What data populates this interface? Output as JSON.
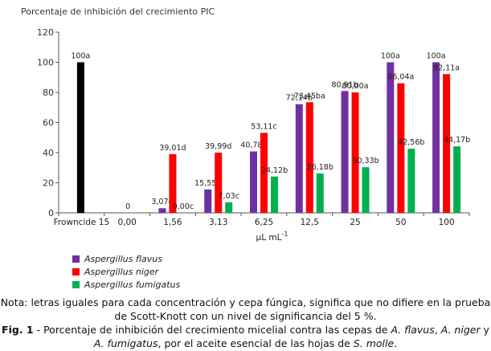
{
  "chart_data": {
    "type": "bar",
    "ylabel": "Porcentaje de inhibición del crecimiento PIC",
    "xlabel_main": "µL mL",
    "xlabel_sup": "-1",
    "ylim": [
      0,
      120
    ],
    "yticks": [
      0,
      20,
      40,
      60,
      80,
      100,
      120
    ],
    "categories": [
      "Frowncide 15",
      "0,00",
      "1,56",
      "3,13",
      "6,25",
      "12,5",
      "25",
      "50",
      "100"
    ],
    "control": {
      "category": "Frowncide 15",
      "value": 100,
      "label": "100a",
      "color": "#000000"
    },
    "zero_label": {
      "category": "0,00",
      "value": 0,
      "label": "0"
    },
    "series": [
      {
        "name": "Aspergillus flavus",
        "color": "#7030a0",
        "values": [
          null,
          null,
          3.07,
          15.55,
          40.78,
          72.14,
          80.91,
          100,
          100
        ],
        "labels": [
          null,
          null,
          "3,07d",
          "15,55d",
          "40,78c",
          "72,14b",
          "80,91b",
          "100a",
          "100a"
        ]
      },
      {
        "name": "Aspergillus niger",
        "color": "#ff0000",
        "values": [
          null,
          null,
          39.01,
          39.99,
          53.11,
          73.45,
          80.0,
          86.04,
          92.11
        ],
        "labels": [
          null,
          null,
          "39,01d",
          "39,99d",
          "53,11c",
          "73,45ba",
          "80,00a",
          "86,04a",
          "92,11a"
        ]
      },
      {
        "name": "Aspergillus fumigatus",
        "color": "#00b050",
        "values": [
          null,
          null,
          0.0,
          7.03,
          24.12,
          26.18,
          30.33,
          42.56,
          44.17
        ],
        "labels": [
          null,
          null,
          "0,00c",
          "7,03c",
          "24,12b",
          "26,18b",
          "30,33b",
          "42,56b",
          "44,17b"
        ]
      }
    ],
    "legend_position": "bottom-left"
  },
  "caption": {
    "nota": "Nota: letras iguales para cada concentración y cepa fúngica, significa que no difiere en la prueba de Scott-Knott con un nivel de significancia del 5 %.",
    "fig_label": "Fig. 1",
    "fig_text_1": " - Porcentaje de inhibición del crecimiento micelial contra las cepas de ",
    "species_1": "A. flavus",
    "sep_1": ", ",
    "species_2": "A. niger",
    "sep_2": " y ",
    "species_3": "A. fumigatus",
    "fig_text_2": ", por el aceite esencial de las hojas de ",
    "species_4": "S. molle",
    "end": "."
  }
}
